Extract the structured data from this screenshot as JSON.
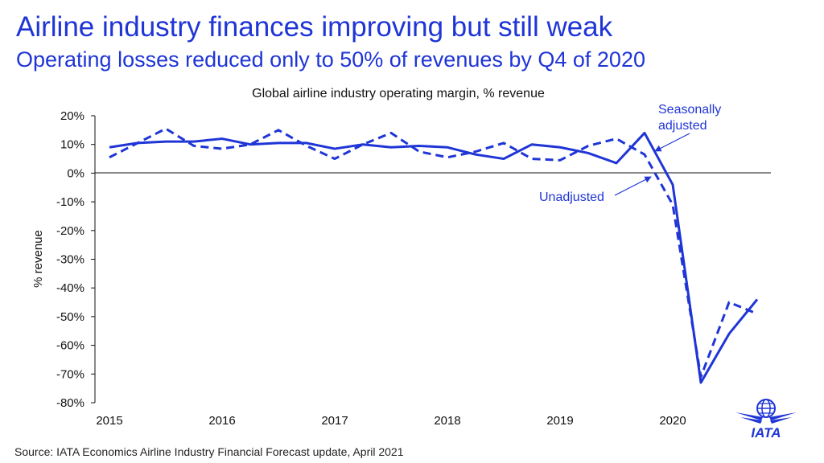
{
  "header": {
    "title": "Airline industry finances improving but still weak",
    "subtitle": "Operating losses reduced only to 50% of revenues by Q4 of 2020"
  },
  "chart_data": {
    "type": "line",
    "title": "Global airline industry operating margin, % revenue",
    "xlabel": "",
    "ylabel": "% revenue",
    "ylim": [
      -80,
      20
    ],
    "yticks": [
      20,
      10,
      0,
      -10,
      -20,
      -30,
      -40,
      -50,
      -60,
      -70,
      -80
    ],
    "ytick_labels": [
      "20%",
      "10%",
      "0%",
      "-10%",
      "-20%",
      "-30%",
      "-40%",
      "-50%",
      "-60%",
      "-70%",
      "-80%"
    ],
    "xticks": [
      "2015",
      "2016",
      "2017",
      "2018",
      "2019",
      "2020"
    ],
    "x": [
      0,
      1,
      2,
      3,
      4,
      5,
      6,
      7,
      8,
      9,
      10,
      11,
      12,
      13,
      14,
      15,
      16,
      17,
      18,
      19,
      20,
      21,
      22,
      23
    ],
    "grid": false,
    "legend": "annotations",
    "series": [
      {
        "name": "Seasonally adjusted",
        "style": "solid",
        "color": "#1f35d6",
        "values": [
          9,
          10.5,
          11,
          11,
          12,
          10,
          10.5,
          10.5,
          8.5,
          10,
          9,
          9.5,
          9,
          6.5,
          5,
          10,
          9,
          7,
          3.5,
          14,
          -4,
          -73,
          -56,
          -44
        ]
      },
      {
        "name": "Unadjusted",
        "style": "dashed",
        "color": "#1f35d6",
        "values": [
          5.5,
          10.5,
          15.5,
          9.5,
          8.5,
          10,
          15,
          9.5,
          5,
          10,
          14,
          7.5,
          5.5,
          7.5,
          10.5,
          5,
          4.5,
          9.5,
          12,
          6.5,
          -11,
          -71,
          -45,
          -49
        ]
      }
    ],
    "annotations": [
      {
        "text_lines": [
          "Seasonally",
          "adjusted"
        ],
        "series": "Seasonally adjusted"
      },
      {
        "text_lines": [
          "Unadjusted"
        ],
        "series": "Unadjusted"
      }
    ]
  },
  "footer": {
    "source": "Source: IATA Economics Airline Industry Financial Forecast update, April 2021",
    "logo_text": "IATA",
    "logo_color": "#1f35d6"
  }
}
